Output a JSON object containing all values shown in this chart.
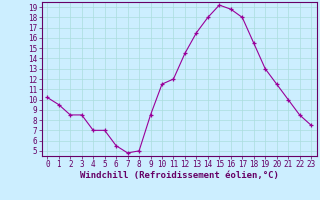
{
  "x": [
    0,
    1,
    2,
    3,
    4,
    5,
    6,
    7,
    8,
    9,
    10,
    11,
    12,
    13,
    14,
    15,
    16,
    17,
    18,
    19,
    20,
    21,
    22,
    23
  ],
  "y": [
    10.2,
    9.5,
    8.5,
    8.5,
    7.0,
    7.0,
    5.5,
    4.8,
    5.0,
    8.5,
    11.5,
    12.0,
    14.5,
    16.5,
    18.0,
    19.2,
    18.8,
    18.0,
    15.5,
    13.0,
    11.5,
    10.0,
    8.5,
    7.5
  ],
  "line_color": "#990099",
  "marker": "+",
  "bg_color": "#cceeff",
  "grid_color": "#aadddd",
  "xlabel": "Windchill (Refroidissement éolien,°C)",
  "xlabel_color": "#660066",
  "tick_color": "#660066",
  "ylim": [
    4.5,
    19.5
  ],
  "xlim": [
    -0.5,
    23.5
  ],
  "yticks": [
    5,
    6,
    7,
    8,
    9,
    10,
    11,
    12,
    13,
    14,
    15,
    16,
    17,
    18,
    19
  ],
  "xticks": [
    0,
    1,
    2,
    3,
    4,
    5,
    6,
    7,
    8,
    9,
    10,
    11,
    12,
    13,
    14,
    15,
    16,
    17,
    18,
    19,
    20,
    21,
    22,
    23
  ],
  "xlabel_fontsize": 6.5,
  "tick_fontsize": 5.5,
  "spine_color": "#660066"
}
